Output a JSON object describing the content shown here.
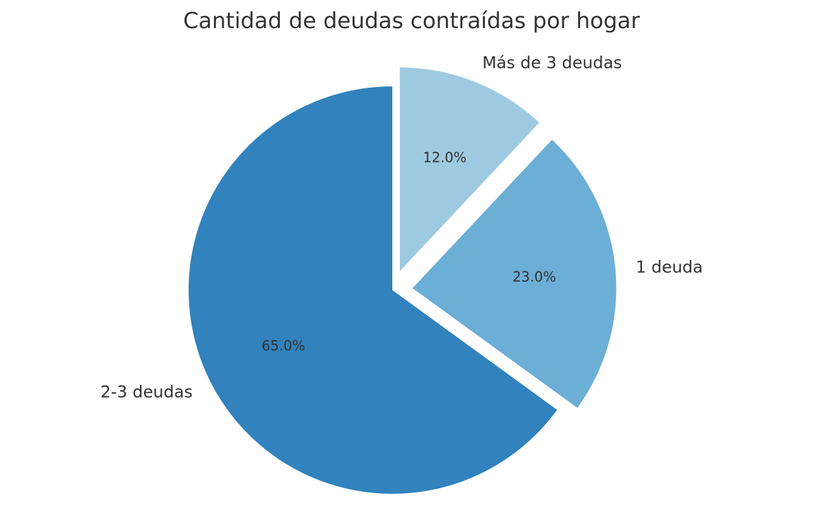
{
  "chart_data": {
    "type": "pie",
    "title": "Cantidad de deudas contraídas por hogar",
    "slices": [
      {
        "label": "Más de 3 deudas",
        "value": 12.0,
        "pct_label": "12.0%",
        "color": "#9ecae1",
        "exploded": true
      },
      {
        "label": "1 deuda",
        "value": 23.0,
        "pct_label": "23.0%",
        "color": "#6baed6",
        "exploded": true
      },
      {
        "label": "2-3 deudas",
        "value": 65.0,
        "pct_label": "65.0%",
        "color": "#3182bd",
        "exploded": false
      }
    ],
    "start_angle_deg": 90,
    "direction": "clockwise",
    "legend": "none"
  }
}
